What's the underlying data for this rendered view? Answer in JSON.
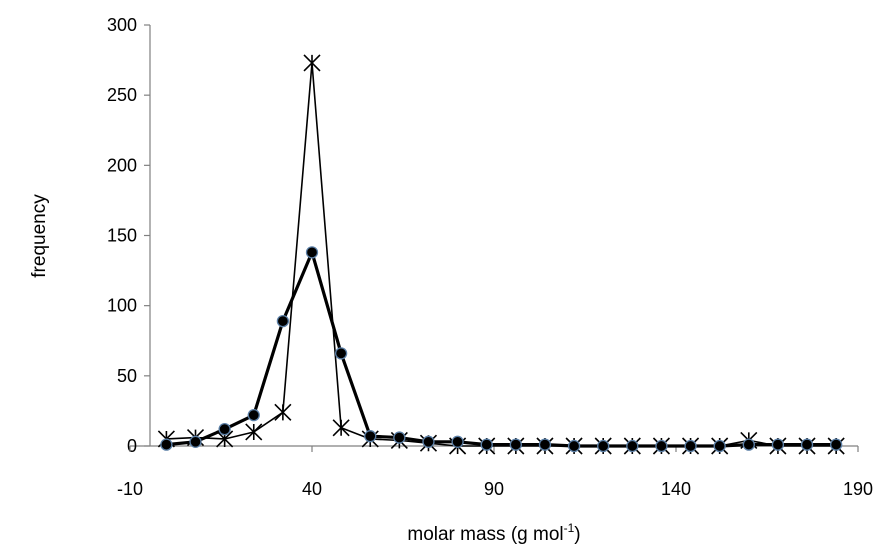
{
  "chart_data": {
    "type": "line",
    "xlabel": "molar mass (g mol",
    "xlabel_superscript": "-1",
    "xlabel_suffix": ")",
    "ylabel": "frequency",
    "xlim": [
      -10,
      190
    ],
    "ylim": [
      0,
      300
    ],
    "x_ticks": [
      "-10",
      "40",
      "90",
      "140",
      "190"
    ],
    "y_ticks": [
      "0",
      "50",
      "100",
      "150",
      "200",
      "250",
      "300"
    ],
    "grid": false,
    "legend": "none",
    "x": [
      0,
      8,
      16,
      24,
      32,
      40,
      48,
      56,
      64,
      72,
      80,
      88,
      96,
      104,
      112,
      120,
      128,
      136,
      144,
      152,
      160,
      168,
      176,
      184
    ],
    "series": [
      {
        "marker": "circle",
        "line": "thick",
        "color": "#000000",
        "marker_edge": "#5b7fa6",
        "values": [
          1,
          3,
          12,
          22,
          89,
          138,
          66,
          7,
          6,
          3,
          3,
          1,
          1,
          1,
          0,
          0,
          0,
          0,
          0,
          0,
          1,
          1,
          1,
          1
        ]
      },
      {
        "marker": "star",
        "line": "thin",
        "color": "#000000",
        "values": [
          5,
          6,
          5,
          10,
          24,
          273,
          13,
          5,
          4,
          2,
          0,
          0,
          0,
          0,
          0,
          0,
          0,
          0,
          0,
          0,
          4,
          0,
          0,
          0
        ]
      }
    ]
  }
}
